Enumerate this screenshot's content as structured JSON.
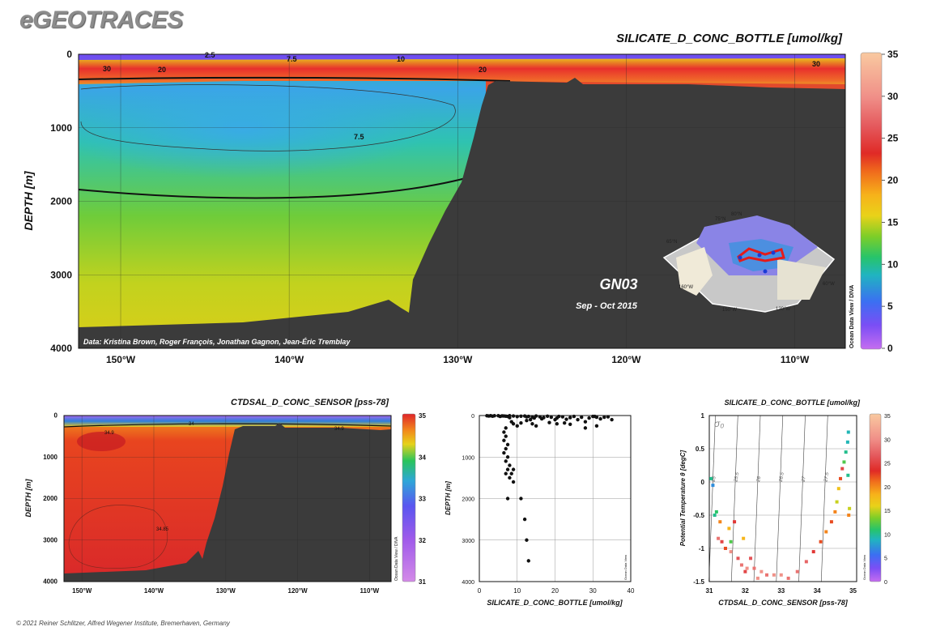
{
  "header": {
    "brand": "eGEOTRACES",
    "footer": "© 2021 Reiner Schlitzer, Alfred Wegener Institute, Bremerhaven, Germany"
  },
  "chart_data": [
    {
      "id": "main-section",
      "type": "heatmap",
      "title": "SILICATE_D_CONC_BOTTLE [umol/kg]",
      "ylabel": "DEPTH [m]",
      "xlabel": "",
      "x_ticks": [
        "150°W",
        "140°W",
        "130°W",
        "120°W",
        "110°W"
      ],
      "x_tick_values": [
        -150,
        -140,
        -130,
        -120,
        -110
      ],
      "xlim": [
        -152.5,
        -107
      ],
      "y_ticks": [
        "0",
        "1000",
        "2000",
        "3000",
        "4000"
      ],
      "y_tick_values": [
        0,
        1000,
        2000,
        3000,
        4000
      ],
      "ylim": [
        4000,
        0
      ],
      "colorbar": {
        "ticks": [
          "0",
          "5",
          "10",
          "15",
          "20",
          "25",
          "30",
          "35"
        ],
        "range": [
          0,
          35
        ],
        "label": "Ocean Data View / DIVA"
      },
      "contour_labels": [
        "30",
        "20",
        "2.5",
        "7.5",
        "10",
        "20",
        "30",
        "7.5"
      ],
      "station_label": "GN03",
      "date_label": "Sep - Oct 2015",
      "credit": "Data: Kristina Brown, Roger François, Jonathan Gagnon, Jean-Éric Tremblay",
      "map_labels": [
        "80°N",
        "75°N",
        "65°N",
        "160°W",
        "150°W",
        "120°W",
        "60°W"
      ],
      "grid": true
    },
    {
      "id": "salinity-section",
      "type": "heatmap",
      "title": "CTDSAL_D_CONC_SENSOR [pss-78]",
      "ylabel": "DEPTH [m]",
      "x_ticks": [
        "150°W",
        "140°W",
        "130°W",
        "120°W",
        "110°W"
      ],
      "x_tick_values": [
        -150,
        -140,
        -130,
        -120,
        -110
      ],
      "xlim": [
        -152.5,
        -107
      ],
      "y_ticks": [
        "0",
        "1000",
        "2000",
        "3000",
        "4000"
      ],
      "y_tick_values": [
        0,
        1000,
        2000,
        3000,
        4000
      ],
      "ylim": [
        4000,
        0
      ],
      "colorbar": {
        "ticks": [
          "31",
          "32",
          "33",
          "34",
          "35"
        ],
        "range": [
          31,
          35
        ],
        "label": "Ocean Data View / DIVA"
      },
      "contour_labels": [
        "34.9",
        "34.9",
        "34.85",
        "34"
      ],
      "grid": true
    },
    {
      "id": "profile-scatter",
      "type": "scatter",
      "title": "",
      "xlabel": "SILICATE_D_CONC_BOTTLE [umol/kg]",
      "ylabel": "DEPTH [m]",
      "xlim": [
        0,
        40
      ],
      "ylim": [
        4000,
        0
      ],
      "x_ticks": [
        "0",
        "10",
        "20",
        "30",
        "40"
      ],
      "y_ticks": [
        "0",
        "1000",
        "2000",
        "3000",
        "4000"
      ],
      "side_label": "Ocean Data View",
      "points": [
        [
          2,
          5
        ],
        [
          2.5,
          10
        ],
        [
          3,
          5
        ],
        [
          3.5,
          15
        ],
        [
          4,
          5
        ],
        [
          5,
          5
        ],
        [
          5.5,
          20
        ],
        [
          6,
          8
        ],
        [
          6.5,
          10
        ],
        [
          7,
          15
        ],
        [
          7.5,
          20
        ],
        [
          8,
          5
        ],
        [
          9,
          10
        ],
        [
          10,
          25
        ],
        [
          11,
          15
        ],
        [
          12,
          10
        ],
        [
          12.5,
          30
        ],
        [
          13,
          20
        ],
        [
          14,
          40
        ],
        [
          14.5,
          60
        ],
        [
          15,
          10
        ],
        [
          16,
          30
        ],
        [
          16.5,
          80
        ],
        [
          17,
          50
        ],
        [
          18,
          15
        ],
        [
          19,
          40
        ],
        [
          20,
          100
        ],
        [
          20.5,
          60
        ],
        [
          21,
          20
        ],
        [
          22,
          30
        ],
        [
          23,
          90
        ],
        [
          24,
          50
        ],
        [
          25,
          20
        ],
        [
          26,
          100
        ],
        [
          27,
          40
        ],
        [
          28,
          150
        ],
        [
          29,
          60
        ],
        [
          30,
          20
        ],
        [
          31,
          40
        ],
        [
          32,
          80
        ],
        [
          33,
          40
        ],
        [
          34,
          30
        ],
        [
          35,
          100
        ],
        [
          30.5,
          20
        ],
        [
          8,
          50
        ],
        [
          8.5,
          150
        ],
        [
          9,
          200
        ],
        [
          10,
          250
        ],
        [
          11,
          180
        ],
        [
          12.5,
          120
        ],
        [
          13.5,
          100
        ],
        [
          14,
          200
        ],
        [
          15,
          250
        ],
        [
          18.5,
          170
        ],
        [
          20.5,
          200
        ],
        [
          22.5,
          180
        ],
        [
          24,
          210
        ],
        [
          28,
          300
        ],
        [
          31,
          250
        ],
        [
          7,
          300
        ],
        [
          6.5,
          400
        ],
        [
          7,
          500
        ],
        [
          6.5,
          600
        ],
        [
          7.5,
          700
        ],
        [
          7,
          800
        ],
        [
          6.5,
          900
        ],
        [
          7.5,
          1000
        ],
        [
          7,
          1100
        ],
        [
          8,
          1200
        ],
        [
          7.5,
          1300
        ],
        [
          7,
          1400
        ],
        [
          8.5,
          1400
        ],
        [
          9,
          1300
        ],
        [
          8,
          1500
        ],
        [
          9,
          1600
        ],
        [
          7.5,
          2000
        ],
        [
          11,
          2000
        ],
        [
          12,
          2500
        ],
        [
          12.5,
          3000
        ],
        [
          13,
          3500
        ]
      ],
      "grid": true
    },
    {
      "id": "ts-scatter",
      "type": "scatter",
      "title": "SILICATE_D_CONC_BOTTLE [umol/kg]",
      "xlabel": "CTDSAL_D_CONC_SENSOR [pss-78]",
      "ylabel": "Potential Temperature θ [degC]",
      "xlim": [
        31,
        35.1
      ],
      "ylim": [
        -1.5,
        1
      ],
      "x_ticks": [
        "31",
        "32",
        "33",
        "34",
        "35"
      ],
      "y_ticks": [
        "1",
        "0.5",
        "0",
        "-0.5",
        "-1",
        "-1.5"
      ],
      "y_tick_values": [
        1,
        0.5,
        0,
        -0.5,
        -1,
        -1.5
      ],
      "sigma_label": "σ₀",
      "isopycnal_labels": [
        "25",
        "25.5",
        "26",
        "26.5",
        "27",
        "27.5"
      ],
      "colorbar": {
        "ticks": [
          "0",
          "5",
          "10",
          "15",
          "20",
          "25",
          "30",
          "35"
        ],
        "range": [
          0,
          35
        ],
        "label": "Ocean Data View"
      },
      "points": [
        [
          31.05,
          0.05,
          10
        ],
        [
          31.1,
          -0.05,
          7
        ],
        [
          31.15,
          -0.5,
          10
        ],
        [
          31.25,
          -0.85,
          28
        ],
        [
          31.3,
          -0.6,
          20
        ],
        [
          31.35,
          -0.9,
          25
        ],
        [
          31.45,
          -1.0,
          22
        ],
        [
          31.55,
          -0.7,
          18
        ],
        [
          31.6,
          -1.05,
          30
        ],
        [
          31.7,
          -0.6,
          24
        ],
        [
          31.8,
          -1.15,
          26
        ],
        [
          31.9,
          -1.25,
          28
        ],
        [
          31.95,
          -0.85,
          18
        ],
        [
          32.05,
          -1.3,
          30
        ],
        [
          32.15,
          -1.15,
          26
        ],
        [
          32.25,
          -1.3,
          28
        ],
        [
          32.35,
          -1.45,
          30
        ],
        [
          32.45,
          -1.35,
          30
        ],
        [
          32.6,
          -1.4,
          28
        ],
        [
          32.8,
          -1.4,
          30
        ],
        [
          33.0,
          -1.4,
          30
        ],
        [
          33.2,
          -1.45,
          28
        ],
        [
          33.45,
          -1.35,
          28
        ],
        [
          33.7,
          -1.2,
          27
        ],
        [
          33.9,
          -1.05,
          24
        ],
        [
          34.1,
          -0.9,
          22
        ],
        [
          34.25,
          -0.75,
          20
        ],
        [
          34.4,
          -0.6,
          22
        ],
        [
          34.5,
          -0.45,
          20
        ],
        [
          34.55,
          -0.3,
          15
        ],
        [
          34.6,
          -0.1,
          17
        ],
        [
          34.65,
          0.05,
          22
        ],
        [
          34.7,
          0.2,
          25
        ],
        [
          34.75,
          0.3,
          12
        ],
        [
          34.8,
          0.45,
          10
        ],
        [
          34.85,
          0.6,
          9
        ],
        [
          34.87,
          0.75,
          9
        ],
        [
          34.88,
          -0.5,
          20
        ],
        [
          34.9,
          -0.4,
          15
        ],
        [
          34.86,
          0.1,
          10
        ],
        [
          31.2,
          -0.45,
          11
        ],
        [
          31.6,
          -0.9,
          12
        ],
        [
          32.0,
          -1.35,
          25
        ]
      ],
      "grid": true
    }
  ]
}
